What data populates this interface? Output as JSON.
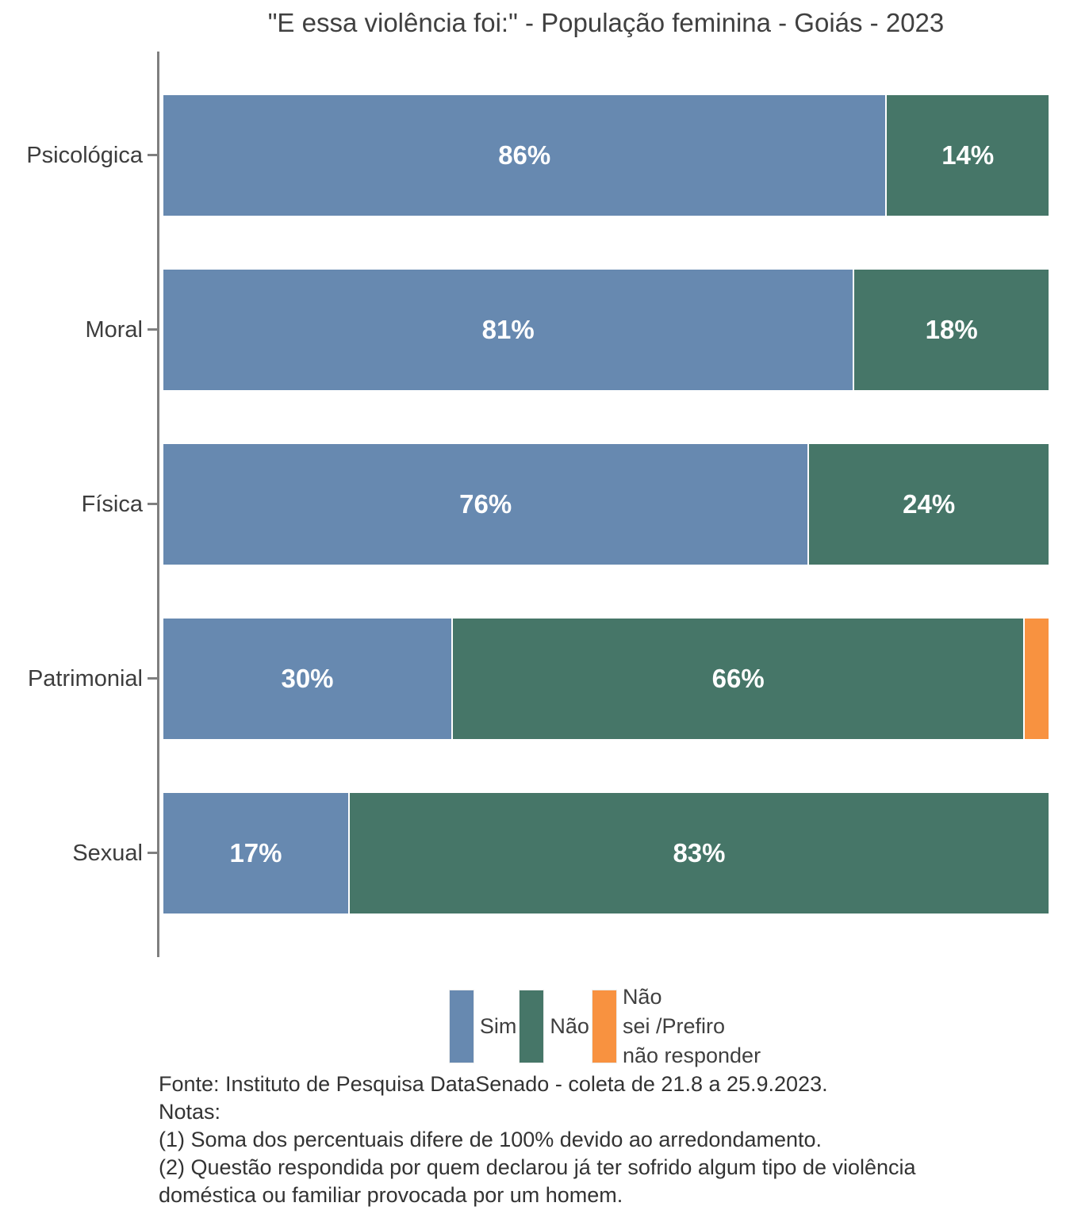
{
  "title": "\"E essa violência foi:\" - População feminina - Goiás - 2023",
  "chart_data": {
    "type": "bar",
    "variant": "horizontal-stacked-percent",
    "title": "\"E essa violência foi:\" - População feminina - Goiás - 2023",
    "xlabel": "",
    "ylabel": "",
    "grid": false,
    "legend_position": "bottom",
    "axis_color": "#7f7f7f",
    "categories": [
      "Psicológica",
      "Moral",
      "Física",
      "Patrimonial",
      "Sexual"
    ],
    "series": [
      {
        "name": "Sim",
        "color": "#6789b0"
      },
      {
        "name": "Não",
        "color": "#467668"
      },
      {
        "name": "Não sei /Prefiro não responder",
        "color": "#f89240"
      }
    ],
    "rows": [
      {
        "category": "Psicológica",
        "segments": [
          {
            "series": 0,
            "value": 86,
            "label": "86%"
          },
          {
            "series": 1,
            "value": 14,
            "label": "14%"
          }
        ]
      },
      {
        "category": "Moral",
        "segments": [
          {
            "series": 0,
            "value": 81,
            "label": "81%"
          },
          {
            "series": 1,
            "value": 18,
            "label": "18%"
          }
        ]
      },
      {
        "category": "Física",
        "segments": [
          {
            "series": 0,
            "value": 76,
            "label": "76%"
          },
          {
            "series": 1,
            "value": 24,
            "label": "24%"
          }
        ]
      },
      {
        "category": "Patrimonial",
        "segments": [
          {
            "series": 0,
            "value": 30,
            "label": "30%"
          },
          {
            "series": 1,
            "value": 66,
            "label": "66%"
          },
          {
            "series": 2,
            "value": 3,
            "label": ""
          }
        ]
      },
      {
        "category": "Sexual",
        "segments": [
          {
            "series": 0,
            "value": 17,
            "label": "17%"
          },
          {
            "series": 1,
            "value": 83,
            "label": "83%"
          }
        ]
      }
    ]
  },
  "legend": {
    "entries": [
      {
        "color": "#6789b0",
        "lines": [
          "Sim"
        ]
      },
      {
        "color": "#467668",
        "lines": [
          "Não"
        ]
      },
      {
        "color": "#f89240",
        "lines": [
          "Não",
          "sei /Prefiro",
          "não responder"
        ]
      }
    ]
  },
  "footer": {
    "lines": [
      "Fonte: Instituto de Pesquisa DataSenado - coleta de 21.8 a 25.9.2023.",
      "Notas:",
      "(1) Soma dos percentuais difere de 100% devido ao arredondamento.",
      "(2) Questão respondida por quem declarou já ter sofrido algum tipo de violência doméstica ou familiar provocada por um homem."
    ]
  },
  "colors": {
    "sim": "#6789b0",
    "nao": "#467668",
    "nao_sei": "#f89240",
    "bar_label": "#ffffff",
    "axis": "#7f7f7f",
    "text": "#3f3f3f",
    "title_text": "#404040"
  }
}
